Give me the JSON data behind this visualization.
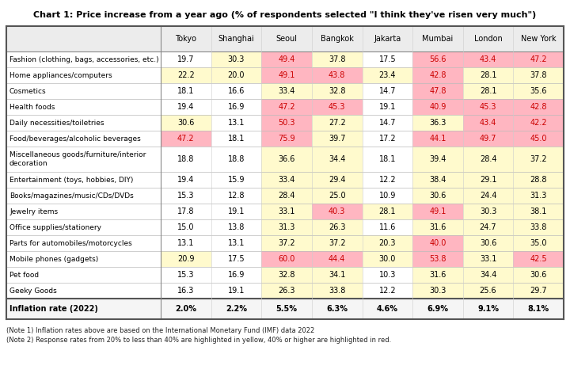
{
  "title": "Chart 1: Price increase from a year ago (% of respondents selected \"I think they've risen very much\")",
  "columns": [
    "Tokyo",
    "Shanghai",
    "Seoul",
    "Bangkok",
    "Jakarta",
    "Mumbai",
    "London",
    "New York"
  ],
  "inflation": [
    "2.0%",
    "2.2%",
    "5.5%",
    "6.3%",
    "4.6%",
    "6.9%",
    "9.1%",
    "8.1%"
  ],
  "rows": [
    [
      "Fashion (clothing, bags, accessories, etc.)",
      19.7,
      30.3,
      49.4,
      37.8,
      17.5,
      56.6,
      43.4,
      47.2
    ],
    [
      "Home appliances/computers",
      22.2,
      20.0,
      49.1,
      43.8,
      23.4,
      42.8,
      28.1,
      37.8
    ],
    [
      "Cosmetics",
      18.1,
      16.6,
      33.4,
      32.8,
      14.7,
      47.8,
      28.1,
      35.6
    ],
    [
      "Health foods",
      19.4,
      16.9,
      47.2,
      45.3,
      19.1,
      40.9,
      45.3,
      42.8
    ],
    [
      "Daily necessities/toiletries",
      30.6,
      13.1,
      50.3,
      27.2,
      14.7,
      36.3,
      43.4,
      42.2
    ],
    [
      "Food/beverages/alcoholic beverages",
      47.2,
      18.1,
      75.9,
      39.7,
      17.2,
      44.1,
      49.7,
      45.0
    ],
    [
      "Miscellaneous goods/furniture/interior\ndecoration",
      18.8,
      18.8,
      36.6,
      34.4,
      18.1,
      39.4,
      28.4,
      37.2
    ],
    [
      "Entertainment (toys, hobbies, DIY)",
      19.4,
      15.9,
      33.4,
      29.4,
      12.2,
      38.4,
      29.1,
      28.8
    ],
    [
      "Books/magazines/music/CDs/DVDs",
      15.3,
      12.8,
      28.4,
      25.0,
      10.9,
      30.6,
      24.4,
      31.3
    ],
    [
      "Jewelry items",
      17.8,
      19.1,
      33.1,
      40.3,
      28.1,
      49.1,
      30.3,
      38.1
    ],
    [
      "Office supplies/stationery",
      15.0,
      13.8,
      31.3,
      26.3,
      11.6,
      31.6,
      24.7,
      33.8
    ],
    [
      "Parts for automobiles/motorcycles",
      13.1,
      13.1,
      37.2,
      37.2,
      20.3,
      40.0,
      30.6,
      35.0
    ],
    [
      "Mobile phones (gadgets)",
      20.9,
      17.5,
      60.0,
      44.4,
      30.0,
      53.8,
      33.1,
      42.5
    ],
    [
      "Pet food",
      15.3,
      16.9,
      32.8,
      34.1,
      10.3,
      31.6,
      34.4,
      30.6
    ],
    [
      "Geeky Goods",
      16.3,
      19.1,
      26.3,
      33.8,
      12.2,
      30.3,
      25.6,
      29.7
    ]
  ],
  "note1": "(Note 1) Inflation rates above are based on the International Monetary Fund (IMF) data 2022",
  "note2": "(Note 2) Response rates from 20% to less than 40% are highlighted in yellow, 40% or higher are highlighted in red.",
  "color_yellow": "#FFFACD",
  "color_red": "#FFB6C1",
  "color_header_bg": "#ECECEC",
  "color_inflation_bg": "#F5F5F5",
  "text_red": "#CC0000",
  "text_normal": "#000000",
  "yellow_threshold_low": 20.0,
  "yellow_threshold_high": 40.0,
  "title_fontsize": 8.0,
  "header_fontsize": 7.0,
  "cell_fontsize": 7.0,
  "label_fontsize": 6.5,
  "note_fontsize": 6.0
}
